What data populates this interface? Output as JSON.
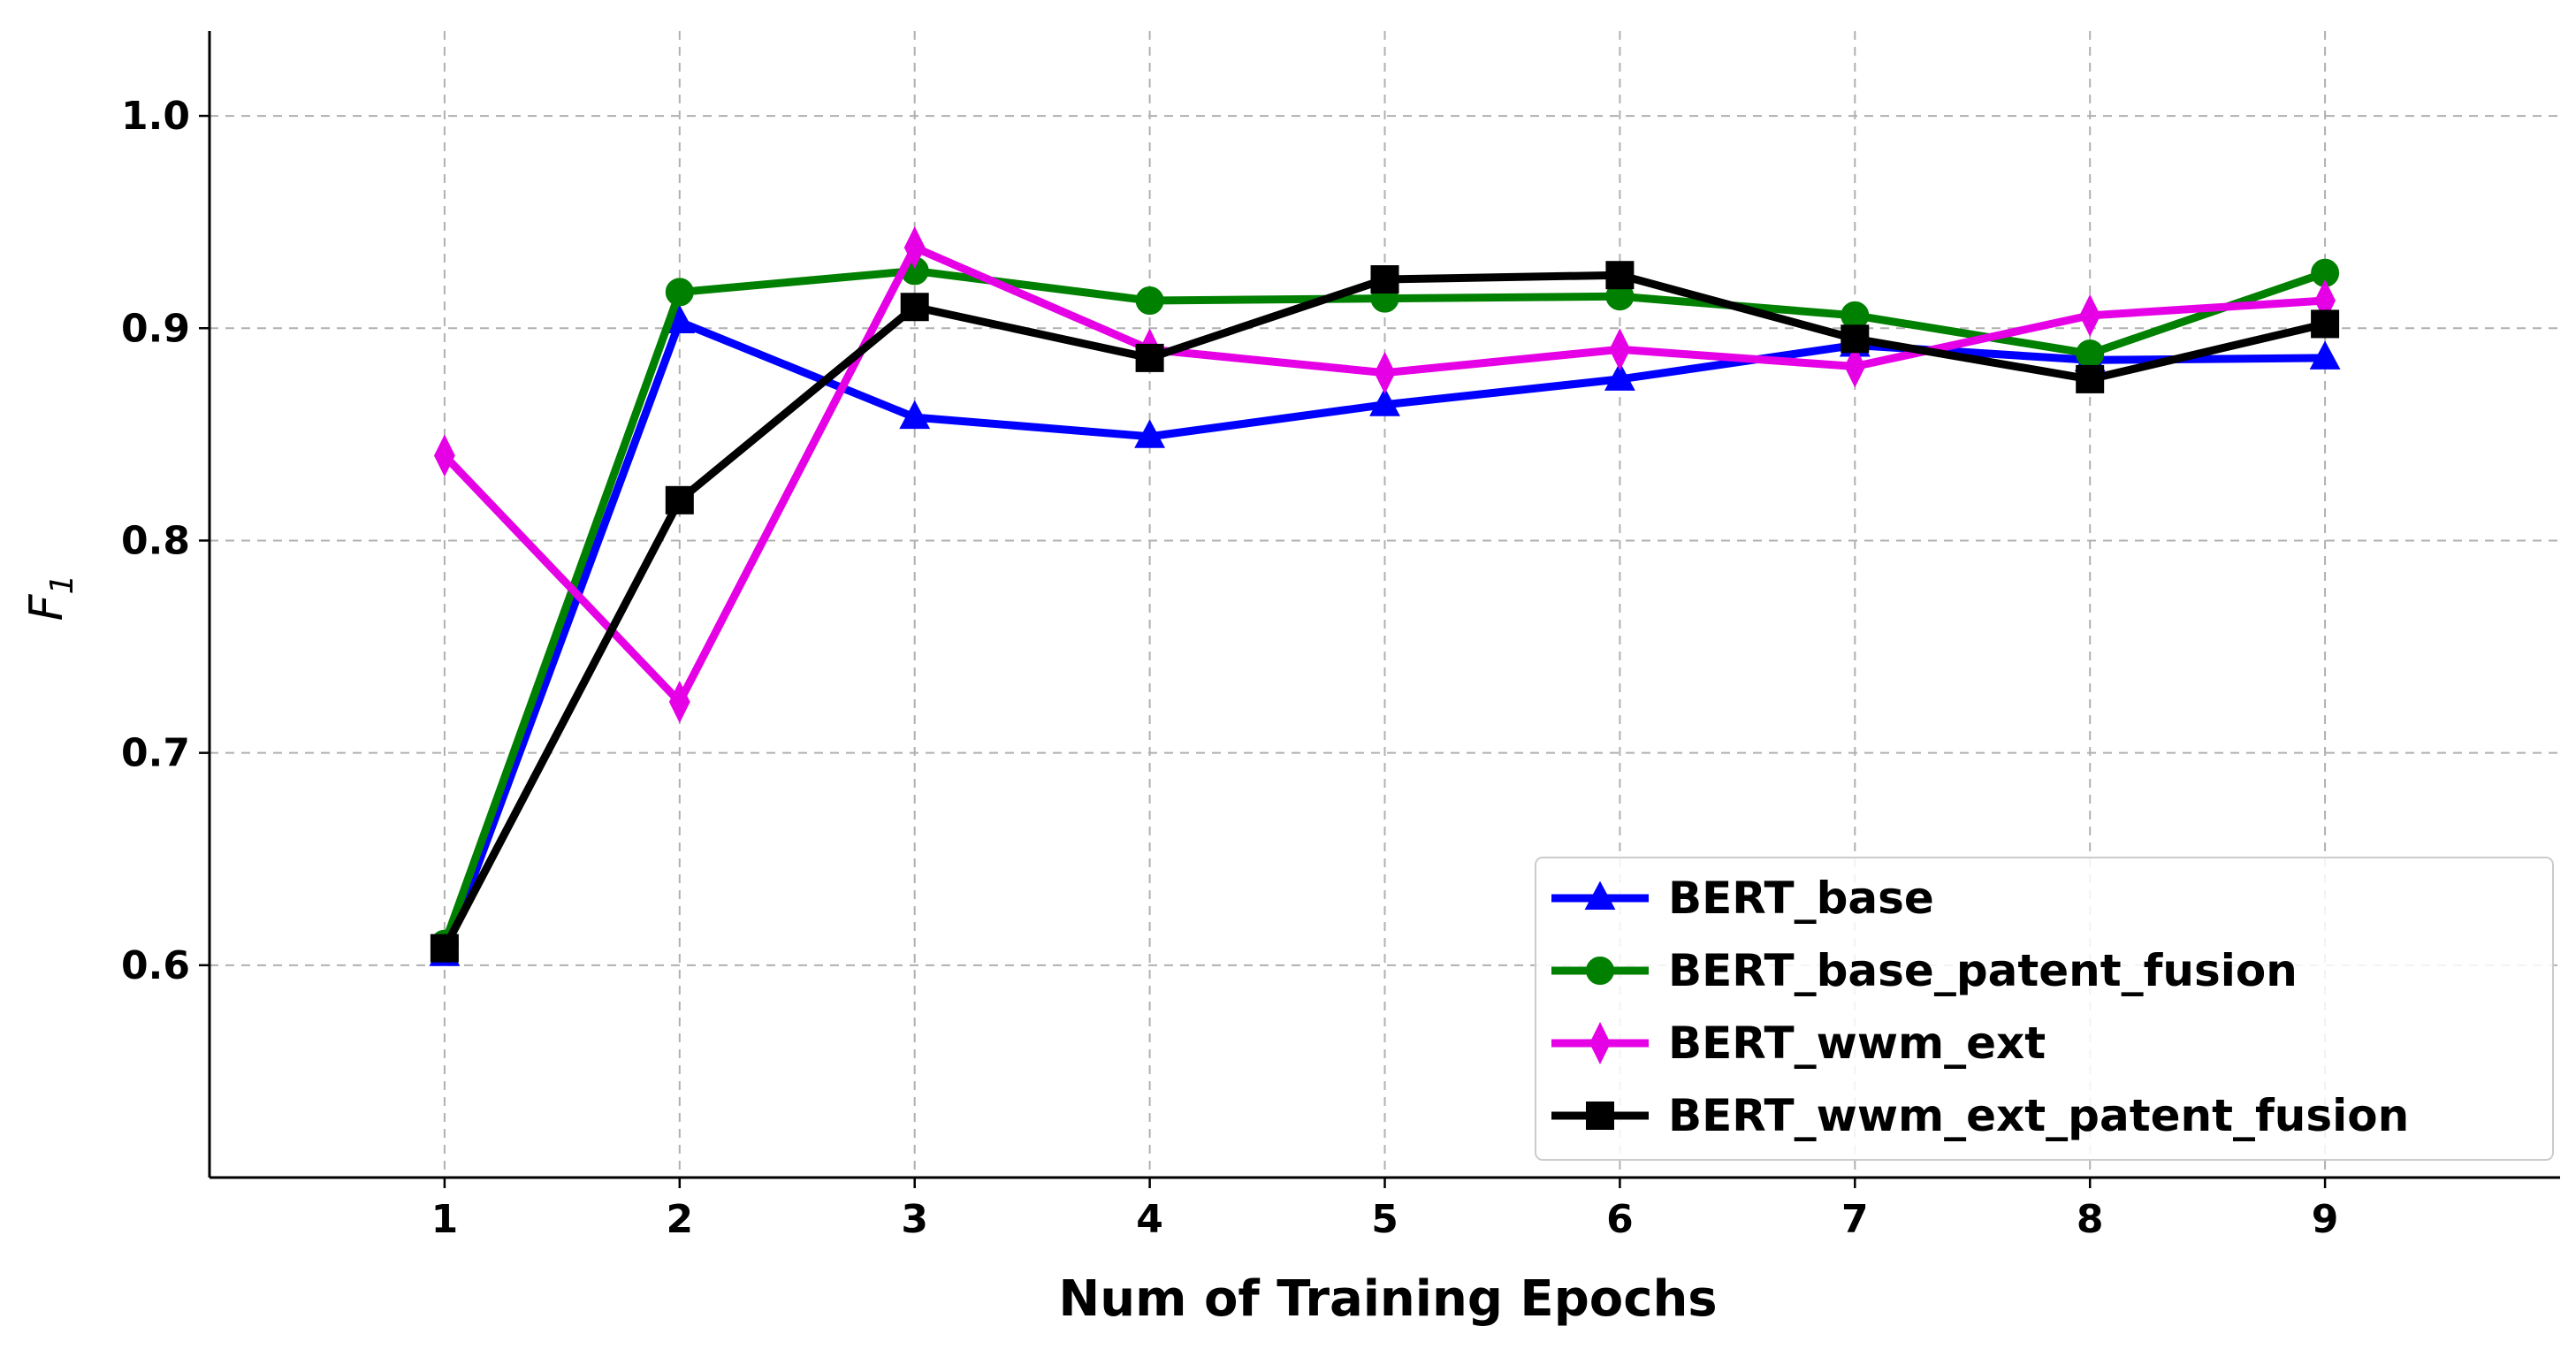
{
  "chart_data": {
    "type": "line",
    "title": "",
    "xlabel": "Num of Training Epochs",
    "ylabel": "F",
    "ylabel_subscript": "1",
    "x": [
      1,
      2,
      3,
      4,
      5,
      6,
      7,
      8,
      9
    ],
    "xlim": [
      0,
      10
    ],
    "ylim": [
      0.5,
      1.04
    ],
    "xticks": [
      "1",
      "2",
      "3",
      "4",
      "5",
      "6",
      "7",
      "8",
      "9"
    ],
    "yticks": [
      "0.6",
      "0.7",
      "0.8",
      "0.9",
      "1.0"
    ],
    "grid": true,
    "legend_position": "bottom-right",
    "series": [
      {
        "name": "BERT_base",
        "color": "#0000ff",
        "marker": "triangle",
        "values": [
          0.605,
          0.903,
          0.858,
          0.849,
          0.864,
          0.876,
          0.892,
          0.885,
          0.886
        ]
      },
      {
        "name": "BERT_base_patent_fusion",
        "color": "#008000",
        "marker": "circle",
        "values": [
          0.61,
          0.917,
          0.927,
          0.913,
          0.914,
          0.915,
          0.906,
          0.888,
          0.926
        ]
      },
      {
        "name": "BERT_wwm_ext",
        "color": "#e600e6",
        "marker": "thin-diamond",
        "values": [
          0.84,
          0.724,
          0.938,
          0.89,
          0.879,
          0.89,
          0.882,
          0.906,
          0.913
        ]
      },
      {
        "name": "BERT_wwm_ext_patent_fusion",
        "color": "#000000",
        "marker": "square",
        "values": [
          0.608,
          0.819,
          0.91,
          0.886,
          0.923,
          0.925,
          0.895,
          0.876,
          0.902
        ]
      }
    ]
  }
}
